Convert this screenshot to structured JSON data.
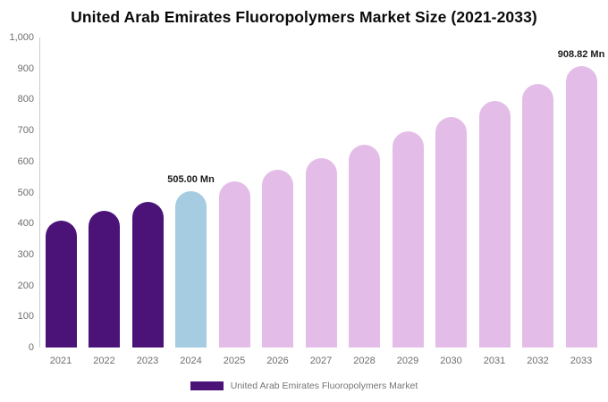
{
  "title": "United Arab Emirates Fluoropolymers Market Size (2021-2033)",
  "legend": {
    "label": "United Arab Emirates Fluoropolymers Market"
  },
  "colors": {
    "historical": "#4B1278",
    "highlight": "#A5CCE1",
    "forecast": "#E3BDE8",
    "axis_line": "#CCCCCC",
    "tick_label": "#6E6E6E",
    "annotation_text": "#1A1A1A",
    "legend_text": "#757575",
    "title_text": "#0A0A0A"
  },
  "chart_data": {
    "type": "bar",
    "title": "United Arab Emirates Fluoropolymers Market Size (2021-2033)",
    "categories": [
      "2021",
      "2022",
      "2023",
      "2024",
      "2025",
      "2026",
      "2027",
      "2028",
      "2029",
      "2030",
      "2031",
      "2032",
      "2033"
    ],
    "series": [
      {
        "name": "United Arab Emirates Fluoropolymers Market",
        "values": [
          410,
          440,
          470,
          505.0,
          537,
          573,
          611,
          655,
          696,
          744,
          794,
          850,
          908.82
        ]
      }
    ],
    "unit": "Mn",
    "xlabel": "",
    "ylabel": "",
    "ylim": [
      0,
      1000
    ],
    "y_ticks": [
      "1,000",
      "900",
      "800",
      "700",
      "600",
      "500",
      "400",
      "300",
      "200",
      "100",
      "0"
    ],
    "y_tick_values": [
      1000,
      900,
      800,
      700,
      600,
      500,
      400,
      300,
      200,
      100,
      0
    ],
    "grid": false,
    "legend_position": "bottom",
    "bar_styles": [
      "historical",
      "historical",
      "historical",
      "highlight",
      "forecast",
      "forecast",
      "forecast",
      "forecast",
      "forecast",
      "forecast",
      "forecast",
      "forecast",
      "forecast"
    ],
    "annotations": [
      {
        "index": 3,
        "text": "505.00 Mn"
      },
      {
        "index": 12,
        "text": "908.82 Mn"
      }
    ]
  }
}
